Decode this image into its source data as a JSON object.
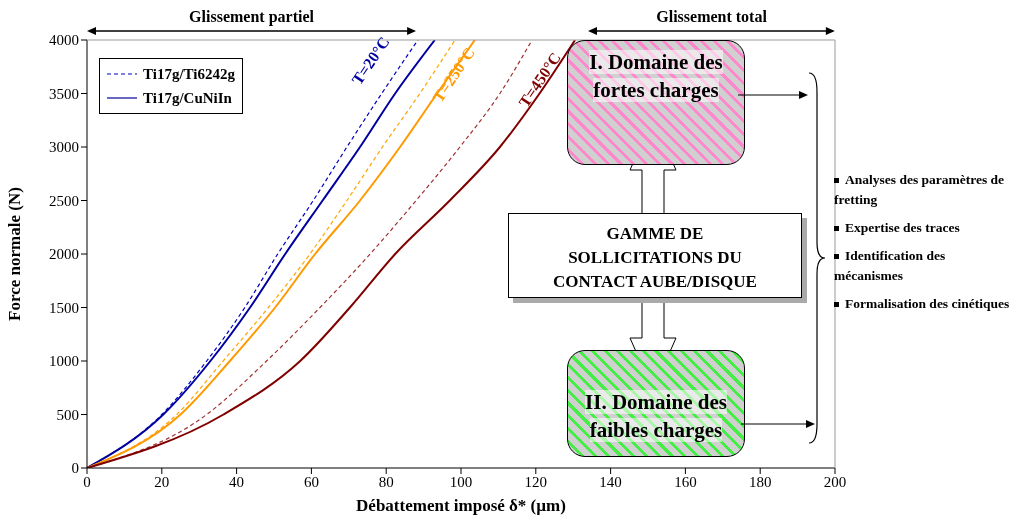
{
  "chart_data": {
    "type": "line",
    "xlabel": "Débattement imposé δ* (µm)",
    "ylabel": "Force normale (N)",
    "xlim": [
      0,
      200
    ],
    "xticks": [
      0,
      20,
      40,
      60,
      80,
      100,
      120,
      140,
      160,
      180,
      200
    ],
    "ylim": [
      0,
      4000
    ],
    "yticks": [
      0,
      500,
      1000,
      1500,
      2000,
      2500,
      3000,
      3500,
      4000
    ],
    "grid": false,
    "legend": "top left",
    "marker": "none",
    "series": [
      {
        "name": "Ti17g/Ti6242g",
        "color": "#0000c0",
        "line_style": "dashed",
        "x": [
          0,
          20,
          32,
          42.2,
          51,
          60.5,
          69.5,
          78.8,
          88.5
        ],
        "values": [
          0,
          500,
          1000,
          1500,
          2000,
          2500,
          3000,
          3500,
          4000
        ]
      },
      {
        "name": "Ti17g/CuNiIn",
        "color": "#0000a0",
        "line_style": "solid",
        "x": [
          0,
          20.4,
          33,
          43.6,
          53,
          63,
          73,
          82.4,
          93
        ],
        "values": [
          0,
          500,
          1000,
          1500,
          2000,
          2500,
          3000,
          3500,
          4000
        ]
      },
      {
        "color": "#ffa500",
        "line_style": "dashed",
        "x": [
          0,
          24,
          36.4,
          48.5,
          59.6,
          69.5,
          79,
          89,
          98.4
        ],
        "values": [
          0,
          500,
          1000,
          1500,
          2000,
          2500,
          3000,
          3500,
          4000
        ]
      },
      {
        "color": "#ff9900",
        "line_style": "solid",
        "x": [
          0,
          25,
          38.2,
          50.3,
          61,
          73,
          83.7,
          93.6,
          103.7
        ],
        "values": [
          0,
          500,
          1000,
          1500,
          2000,
          2500,
          3000,
          3500,
          4000
        ]
      },
      {
        "color": "#a03030",
        "line_style": "dashed",
        "x": [
          0,
          32,
          48,
          62.3,
          75.7,
          88,
          99.7,
          110.4,
          119
        ],
        "values": [
          0,
          500,
          1000,
          1500,
          2000,
          2500,
          3000,
          3500,
          4000
        ]
      },
      {
        "color": "#800000",
        "line_style": "solid",
        "x": [
          0,
          36.5,
          57,
          70.3,
          82.4,
          97,
          110.4,
          121,
          130.5
        ],
        "values": [
          0,
          500,
          1000,
          1500,
          2000,
          2500,
          3000,
          3500,
          4000
        ]
      }
    ],
    "annotations": [
      "Glissement partiel",
      "Glissement total",
      "T=20°C",
      "T=250°C",
      "T=450°C",
      "I. Domaine des fortes charges",
      "GAMME DE SOLLICITATIONS DU CONTACT AUBE/DISQUE",
      "II. Domaine des faibles charges",
      "Analyses des paramètres de fretting",
      "Expertise des traces",
      "Identification des mécanismes",
      "Formalisation des cinétiques"
    ]
  }
}
